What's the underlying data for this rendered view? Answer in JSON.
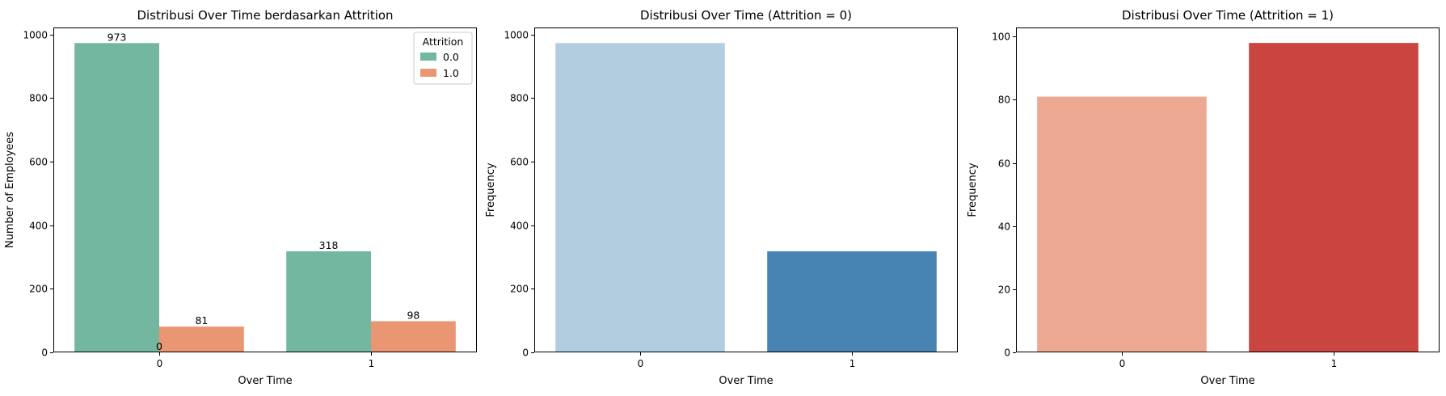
{
  "chart_data": [
    {
      "type": "bar",
      "title": "Distribusi Over Time berdasarkan Attrition",
      "xlabel": "Over Time",
      "ylabel": "Number of Employees",
      "categories": [
        "0",
        "1"
      ],
      "yticks": [
        0,
        200,
        400,
        600,
        800,
        1000
      ],
      "ylim": [
        0,
        1022
      ],
      "grid": false,
      "legend": {
        "title": "Attrition",
        "placement": "top-right"
      },
      "series": [
        {
          "name": "0.0",
          "values": [
            973,
            318
          ],
          "color": "#74b7a0"
        },
        {
          "name": "1.0",
          "values": [
            81,
            98
          ],
          "color": "#ea9673"
        }
      ],
      "data_labels": [
        {
          "text": "973",
          "category": 0,
          "series": 0
        },
        {
          "text": "81",
          "category": 0,
          "series": 1
        },
        {
          "text": "318",
          "category": 1,
          "series": 0
        },
        {
          "text": "98",
          "category": 1,
          "series": 1
        },
        {
          "text": "0",
          "category": 0,
          "series": -1
        }
      ]
    },
    {
      "type": "bar",
      "title": "Distribusi Over Time (Attrition = 0)",
      "xlabel": "Over Time",
      "ylabel": "Frequency",
      "categories": [
        "0",
        "1"
      ],
      "yticks": [
        0,
        200,
        400,
        600,
        800,
        1000
      ],
      "ylim": [
        0,
        1022
      ],
      "grid": false,
      "values": [
        973,
        318
      ],
      "colors": [
        "#b3cde0",
        "#4884b3"
      ]
    },
    {
      "type": "bar",
      "title": "Distribusi Over Time (Attrition = 1)",
      "xlabel": "Over Time",
      "ylabel": "Frequency",
      "categories": [
        "0",
        "1"
      ],
      "yticks": [
        0,
        20,
        40,
        60,
        80,
        100
      ],
      "ylim": [
        0,
        102.9
      ],
      "grid": false,
      "values": [
        81,
        98
      ],
      "colors": [
        "#eca890",
        "#ca4440"
      ]
    }
  ]
}
